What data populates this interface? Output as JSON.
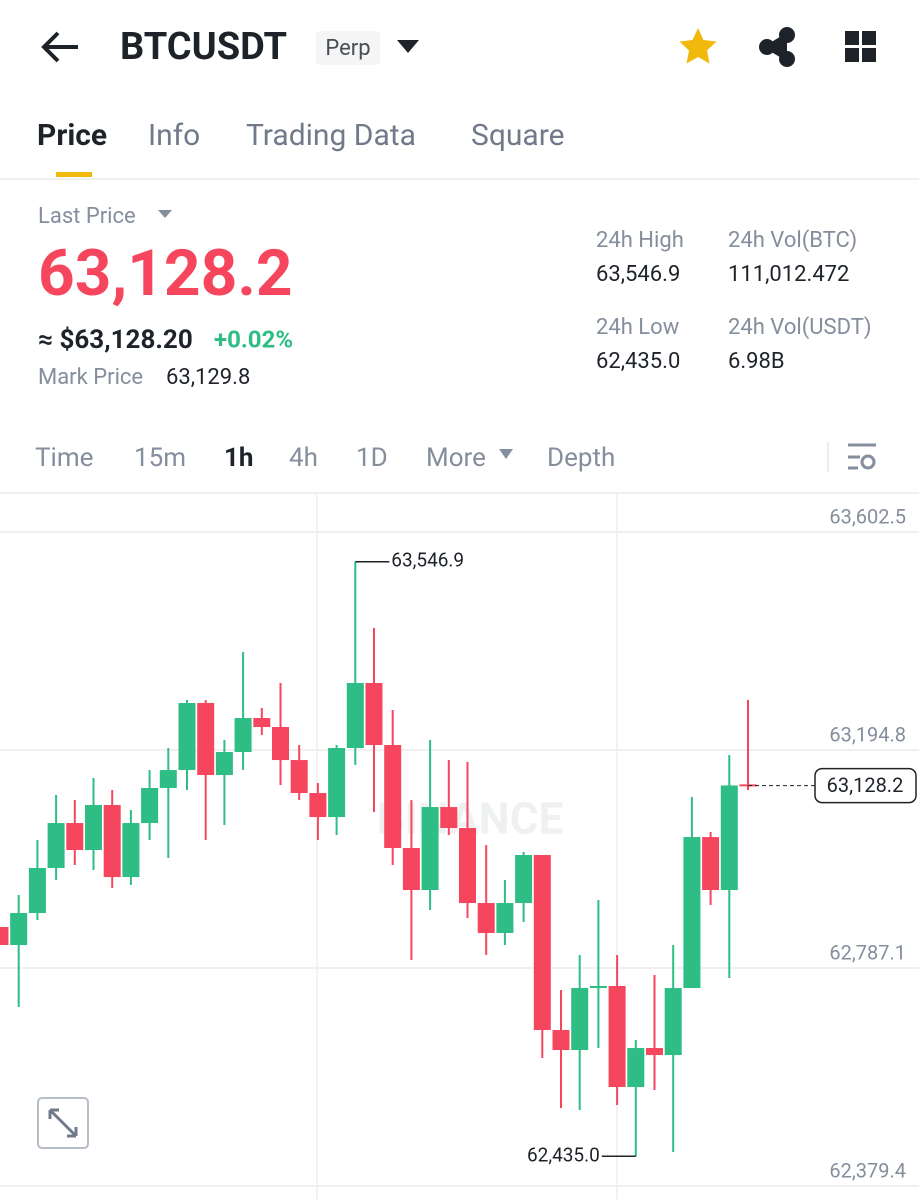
{
  "header": {
    "symbol": "BTCUSDT",
    "badge": "Perp"
  },
  "tabs": [
    "Price",
    "Info",
    "Trading Data",
    "Square"
  ],
  "active_tab": 0,
  "price": {
    "label": "Last Price",
    "last": "63,128.2",
    "approx": "≈ $63,128.20",
    "change": "+0.02%",
    "mark_label": "Mark Price",
    "mark": "63,129.8"
  },
  "stats": [
    {
      "label": "24h High",
      "value": "63,546.9"
    },
    {
      "label": "24h Vol(BTC)",
      "value": "111,012.472"
    },
    {
      "label": "24h Low",
      "value": "62,435.0"
    },
    {
      "label": "24h Vol(USDT)",
      "value": "6.98B"
    }
  ],
  "intervals": [
    "Time",
    "15m",
    "1h",
    "4h",
    "1D",
    "More",
    "Depth"
  ],
  "active_interval": 2,
  "chart_data": {
    "type": "candlestick",
    "watermark": "BINANCE",
    "up_color": "#2ebd85",
    "down_color": "#f6465d",
    "open": [
      62863.7,
      62830.1,
      62889.9,
      62974.1,
      63058.2,
      63007.7,
      63091.9,
      62957.2,
      63058.2,
      63123.7,
      63157.3,
      63282.7,
      63148.0,
      63191.0,
      63254.6,
      63237.8,
      63176.0,
      63114.3,
      63069.4,
      63198.5,
      63320.1,
      63204.1,
      63011.5,
      62932.9,
      63088.1,
      63048.9,
      62908.6,
      62852.5,
      62908.6,
      62998.4,
      62671.1,
      62633.7,
      62749.6,
      62753.4,
      62564.5,
      62637.4,
      62624.3,
      62749.6,
      63032.0,
      62932.9,
      63130.5
    ],
    "high": [
      62863.7,
      62923.6,
      63026.4,
      63110.6,
      63101.2,
      63142.4,
      63119.9,
      63082.5,
      63157.3,
      63198.5,
      63288.3,
      63288.3,
      63213.5,
      63378.0,
      63273.3,
      63320.1,
      63204.1,
      63133.0,
      63204.1,
      63546.9,
      63422.9,
      63269.6,
      63101.2,
      63213.5,
      63176.0,
      63172.3,
      63017.1,
      62951.6,
      63004.0,
      62998.4,
      62745.9,
      62811.4,
      62914.2,
      62811.4,
      62652.4,
      62774.0,
      62830.1,
      63106.8,
      63041.4,
      63185.4,
      63288.3
    ],
    "low": [
      62830.1,
      62714.1,
      62876.8,
      62951.6,
      62979.7,
      62970.3,
      62936.7,
      62942.3,
      63026.4,
      62992.8,
      63119.9,
      63026.4,
      63054.5,
      63157.3,
      63222.8,
      63129.3,
      63101.2,
      63026.4,
      63035.8,
      63166.7,
      63078.8,
      62979.7,
      62802.0,
      62895.5,
      63035.8,
      62880.6,
      62811.4,
      62830.1,
      62873.1,
      62618.7,
      62525.2,
      62521.5,
      62637.4,
      62530.8,
      62435.0,
      62558.9,
      62442.9,
      62749.6,
      62904.9,
      62768.3,
      63119.9
    ],
    "close": [
      62830.1,
      62889.9,
      62974.1,
      63058.2,
      63007.7,
      63091.9,
      62957.2,
      63058.2,
      63123.7,
      63157.3,
      63282.7,
      63148.0,
      63191.0,
      63254.6,
      63237.8,
      63176.0,
      63114.3,
      63069.4,
      63198.5,
      63320.1,
      63204.1,
      63011.5,
      62932.9,
      63088.1,
      63048.9,
      62908.6,
      62852.5,
      62908.6,
      62998.4,
      62671.1,
      62633.7,
      62749.6,
      62753.4,
      62564.5,
      62637.4,
      62624.3,
      62749.6,
      63032.0,
      62932.9,
      63128.5,
      63128.2
    ],
    "ylim": [
      62371.9,
      63671.7
    ],
    "yticks": [
      {
        "value": 62379.4,
        "label": "62,379.4"
      },
      {
        "value": 62787.1,
        "label": "62,787.1"
      },
      {
        "value": 63194.8,
        "label": "63,194.8"
      },
      {
        "value": 63602.5,
        "label": "63,602.5"
      }
    ],
    "high_label": {
      "value": 63546.9,
      "label": "63,546.9"
    },
    "low_label": {
      "value": 62435.0,
      "label": "62,435.0"
    },
    "last_label": {
      "value": 63128.2,
      "label": "63,128.2"
    },
    "grid": true
  }
}
